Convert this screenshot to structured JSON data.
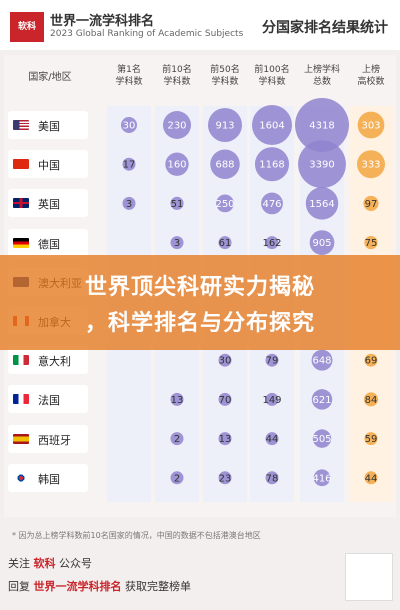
{
  "header": {
    "logo_text": "软科",
    "brand_title": "世界一流学科排名",
    "brand_subtitle": "2023 Global Ranking of Academic Subjects",
    "title": "分国家排名结果统计"
  },
  "chart_data": {
    "type": "table",
    "columns": [
      "国家/地区",
      "第1名学科数",
      "前10名学科数",
      "前50名学科数",
      "前100名学科数",
      "上榜学科总数",
      "上榜高校数"
    ],
    "rows": [
      {
        "country": "美国",
        "flag": "us",
        "values": [
          30,
          230,
          913,
          1604,
          4318,
          303
        ]
      },
      {
        "country": "中国",
        "flag": "cn",
        "values": [
          17,
          160,
          688,
          1168,
          3390,
          333
        ]
      },
      {
        "country": "英国",
        "flag": "uk",
        "values": [
          3,
          51,
          250,
          476,
          1564,
          97
        ]
      },
      {
        "country": "德国",
        "flag": "de",
        "values": [
          null,
          3,
          61,
          162,
          905,
          75
        ]
      },
      {
        "country": "澳大利亚",
        "flag": "au",
        "values": [
          null,
          null,
          null,
          null,
          null,
          null
        ]
      },
      {
        "country": "加拿大",
        "flag": "ca",
        "values": [
          null,
          null,
          null,
          null,
          null,
          null
        ]
      },
      {
        "country": "意大利",
        "flag": "it",
        "values": [
          null,
          null,
          30,
          79,
          648,
          69
        ]
      },
      {
        "country": "法国",
        "flag": "fr",
        "values": [
          null,
          13,
          70,
          149,
          621,
          84
        ]
      },
      {
        "country": "西班牙",
        "flag": "es",
        "values": [
          null,
          2,
          13,
          44,
          505,
          59
        ]
      },
      {
        "country": "韩国",
        "flag": "kr",
        "values": [
          null,
          2,
          23,
          78,
          416,
          44
        ]
      }
    ],
    "column_colors": [
      "#8f84cf",
      "#8f84cf",
      "#8f84cf",
      "#8f84cf",
      "#8f84cf",
      "#f2a640"
    ]
  },
  "col_heads": [
    {
      "l1": "第1名",
      "l2": "学科数"
    },
    {
      "l1": "前10名",
      "l2": "学科数"
    },
    {
      "l1": "前50名",
      "l2": "学科数"
    },
    {
      "l1": "前100名",
      "l2": "学科数"
    },
    {
      "l1": "上榜学科",
      "l2": "总数"
    },
    {
      "l1": "上榜",
      "l2": "高校数"
    }
  ],
  "overlay": {
    "line1": "世界顶尖科研实力揭秘",
    "line2": "，科学排名与分布探究"
  },
  "note": "* 因为总上榜学科数前10名国家的情况，中国的数据不包括港澳台地区",
  "footer": {
    "l1_pre": "关注 ",
    "l1_accent": "软科",
    "l1_post": " 公众号",
    "l2_pre": "回复 ",
    "l2_accent": "世界一流学科排名",
    "l2_post": " 获取完整榜单"
  }
}
